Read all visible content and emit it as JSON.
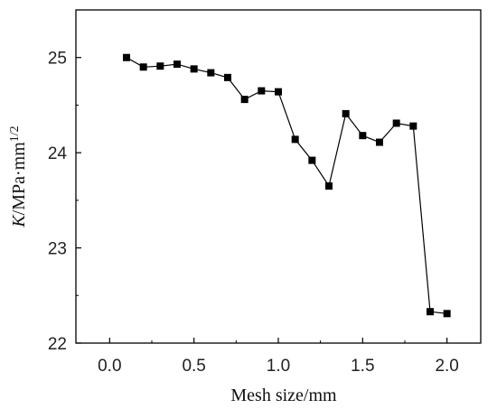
{
  "chart_data": {
    "type": "line",
    "xlabel": "Mesh size/mm",
    "ylabel": {
      "symbol": "K",
      "unit": "/MPa·mm",
      "exponent": "1/2"
    },
    "xlim": [
      -0.2,
      2.2
    ],
    "ylim": [
      22,
      25.5
    ],
    "xticks": [
      "0.0",
      "0.5",
      "1.0",
      "1.5",
      "2.0"
    ],
    "xtick_values": [
      0,
      0.5,
      1.0,
      1.5,
      2.0
    ],
    "yticks": [
      "22",
      "23",
      "24",
      "25"
    ],
    "ytick_values": [
      22,
      23,
      24,
      25
    ],
    "grid": false,
    "series": [
      {
        "marker": "square",
        "color": "#000000",
        "x": [
          0.1,
          0.2,
          0.3,
          0.4,
          0.5,
          0.6,
          0.7,
          0.8,
          0.9,
          1.0,
          1.1,
          1.2,
          1.3,
          1.4,
          1.5,
          1.6,
          1.7,
          1.8,
          1.9,
          2.0
        ],
        "y": [
          25.0,
          24.9,
          24.91,
          24.93,
          24.88,
          24.84,
          24.79,
          24.56,
          24.65,
          24.64,
          24.14,
          23.92,
          23.65,
          24.41,
          24.18,
          24.11,
          24.31,
          24.28,
          22.33,
          22.31
        ]
      }
    ]
  }
}
